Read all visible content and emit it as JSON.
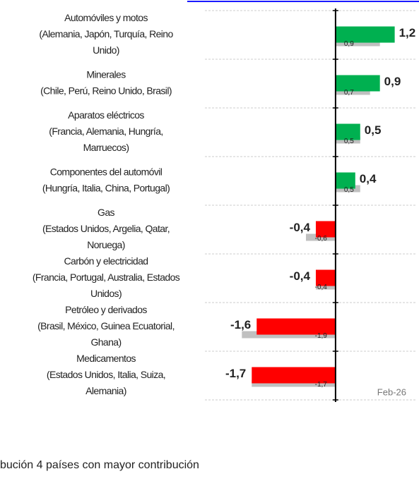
{
  "chart_data": {
    "type": "bar",
    "orientation": "horizontal",
    "categories": [
      [
        "Automóviles y motos",
        "(Alemania, Japón, Turquía, Reino",
        "Unido)"
      ],
      [
        "Minerales",
        "(Chile, Perú, Reino Unido, Brasil)"
      ],
      [
        "Aparatos eléctricos",
        "(Francia, Alemania, Hungría,",
        "Marruecos)"
      ],
      [
        "Componentes del automóvil",
        "(Hungría, Italia, China, Portugal)"
      ],
      [
        "Gas",
        "(Estados Unidos, Argelia, Qatar,",
        "Noruega)"
      ],
      [
        "Carbón y electricidad",
        "(Francia, Portugal, Australia, Estados",
        "Unidos)"
      ],
      [
        "Petróleo y derivados",
        "(Brasil, México, Guinea Ecuatorial,",
        "Ghana)"
      ],
      [
        "Medicamentos",
        "(Estados Unidos, Italia, Suiza,",
        "Alemania)"
      ]
    ],
    "series": [
      {
        "color": "#c0c0c0",
        "values": [
          0.9,
          0.7,
          0.5,
          0.5,
          -0.6,
          -0.4,
          -1.9,
          -1.7
        ],
        "value_labels": [
          "0,9",
          "0,7",
          "0,5",
          "0,5",
          "-0,6",
          "-0,4",
          "-1,9",
          "-1,7"
        ]
      },
      {
        "positive_color": "#00b050",
        "negative_color": "#ff0000",
        "values": [
          1.2,
          0.9,
          0.5,
          0.4,
          -0.4,
          -0.4,
          -1.6,
          -1.7
        ],
        "value_labels": [
          "1,2",
          "0,9",
          "0,5",
          "0,4",
          "-0,4",
          "-0,4",
          "-1,6",
          "-1,7"
        ]
      }
    ],
    "xlim": [
      -2.65,
      1.65
    ],
    "annotation": "Feb-26"
  },
  "footer": "bución 4 países con mayor contribución"
}
